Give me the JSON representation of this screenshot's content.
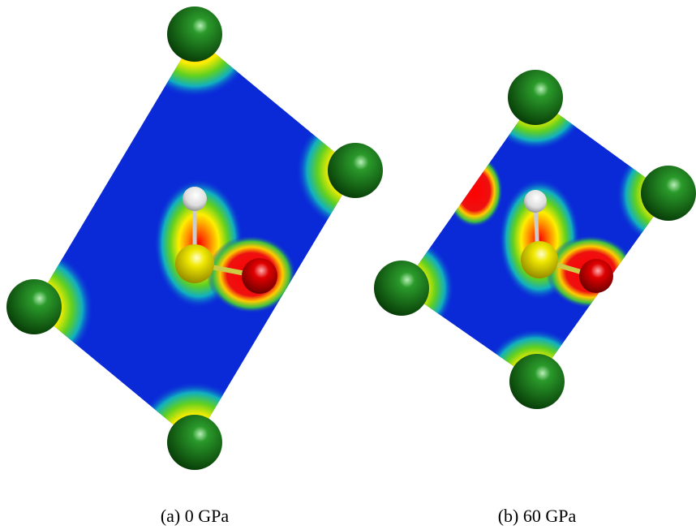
{
  "panels": [
    {
      "caption": "(a) 0 GPa"
    },
    {
      "caption": "(b) 60 GPa"
    }
  ]
}
